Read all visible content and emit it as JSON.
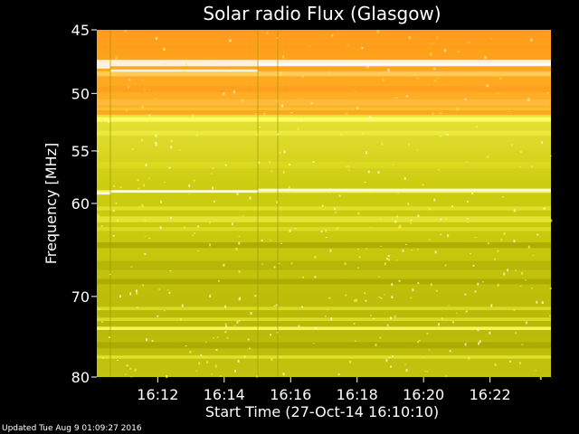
{
  "chart_data": {
    "type": "heatmap",
    "title": "Solar radio Flux (Glasgow)",
    "xlabel": "Start Time (27-Oct-14 16:10:10)",
    "ylabel": "Frequency [MHz]",
    "x_range": [
      "16:10:10",
      "16:23:50"
    ],
    "x_ticks": [
      "16:12",
      "16:14",
      "16:16",
      "16:18",
      "16:20",
      "16:22"
    ],
    "y_ticks": [
      45,
      50,
      55,
      60,
      70,
      80
    ],
    "ylim": [
      45,
      80
    ],
    "y_scale": "log",
    "colors": {
      "low": "#a8a800",
      "mid": "#d4d414",
      "high": "#ffff66",
      "hot": "#ff9f1e",
      "saturated": "#ffffff"
    }
  },
  "footer": "Updated Tue Aug  9 01:09:27 2016"
}
